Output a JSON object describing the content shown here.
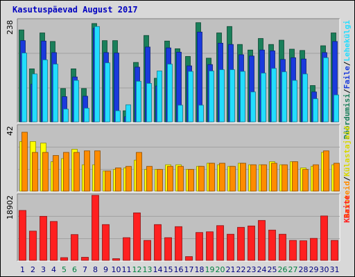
{
  "chart_data": [
    {
      "type": "bar",
      "title": "Kasutuspäevad August 2017",
      "panel": "top",
      "ymax_label": "238",
      "ylim": [
        0,
        238
      ],
      "categories": [
        "1",
        "2",
        "3",
        "4",
        "5",
        "6",
        "7",
        "8",
        "9",
        "10",
        "11",
        "12",
        "13",
        "14",
        "15",
        "16",
        "17",
        "18",
        "19",
        "20",
        "21",
        "22",
        "23",
        "24",
        "25",
        "26",
        "27",
        "28",
        "29",
        "30",
        "31"
      ],
      "series": [
        {
          "name": "Pöördumisi",
          "color": "#1a7f5a",
          "values": [
            215,
            124,
            208,
            188,
            78,
            124,
            78,
            230,
            190,
            190,
            26,
            139,
            202,
            102,
            189,
            171,
            153,
            232,
            149,
            208,
            223,
            181,
            168,
            195,
            181,
            191,
            170,
            167,
            85,
            178,
            208
          ]
        },
        {
          "name": "Faile",
          "color": "#1a3adc",
          "values": [
            190,
            88,
            189,
            162,
            59,
            105,
            60,
            219,
            162,
            161,
            12,
            128,
            175,
            84,
            173,
            163,
            131,
            210,
            134,
            184,
            181,
            157,
            154,
            168,
            166,
            146,
            150,
            147,
            70,
            162,
            188
          ]
        },
        {
          "name": "Lehekülgi",
          "color": "#22ddff",
          "values": [
            161,
            112,
            145,
            135,
            30,
            97,
            32,
            223,
            138,
            26,
            40,
            95,
            90,
            119,
            135,
            39,
            118,
            39,
            119,
            122,
            122,
            118,
            70,
            114,
            125,
            117,
            97,
            112,
            54,
            150,
            63
          ]
        }
      ]
    },
    {
      "type": "bar",
      "panel": "middle",
      "ymax_label": "42",
      "ylim": [
        0,
        42
      ],
      "categories": [
        "1",
        "2",
        "3",
        "4",
        "5",
        "6",
        "7",
        "8",
        "9",
        "10",
        "11",
        "12",
        "13",
        "14",
        "15",
        "16",
        "17",
        "18",
        "19",
        "20",
        "21",
        "22",
        "23",
        "24",
        "25",
        "26",
        "27",
        "28",
        "29",
        "30",
        "31"
      ],
      "series": [
        {
          "name": "Külastajaid",
          "color": "#ffff00",
          "values": [
            32,
            32,
            31,
            19,
            21,
            27,
            17,
            17,
            13,
            14,
            15,
            20,
            14,
            14,
            17,
            17,
            14,
            16,
            18,
            17,
            16,
            18,
            17,
            17,
            19,
            17,
            19,
            15,
            16,
            25,
            17
          ]
        },
        {
          "name": "Arvuteid",
          "color": "#ff8c00",
          "values": [
            38,
            25,
            25,
            23,
            25,
            25,
            26,
            26,
            13,
            15,
            16,
            25,
            16,
            14,
            16,
            16,
            14,
            16,
            18,
            18,
            16,
            18,
            17,
            17,
            18,
            17,
            19,
            14,
            17,
            26,
            18
          ]
        }
      ]
    },
    {
      "type": "bar",
      "panel": "bottom",
      "ymax_label": "18902",
      "ylim": [
        0,
        18902
      ],
      "categories": [
        "1",
        "2",
        "3",
        "4",
        "5",
        "6",
        "7",
        "8",
        "9",
        "10",
        "11",
        "12",
        "13",
        "14",
        "15",
        "16",
        "17",
        "18",
        "19",
        "20",
        "21",
        "22",
        "23",
        "24",
        "25",
        "26",
        "27",
        "28",
        "29",
        "30",
        "31"
      ],
      "series": [
        {
          "name": "KBaite",
          "color": "#ff2020",
          "values": [
            14500,
            8500,
            12800,
            11300,
            800,
            7500,
            900,
            18902,
            10400,
            500,
            6600,
            13800,
            5800,
            10400,
            6600,
            9800,
            1100,
            8100,
            8300,
            10100,
            7600,
            9600,
            10000,
            11600,
            8800,
            7600,
            5800,
            5700,
            6400,
            12900,
            5800
          ]
        }
      ]
    }
  ],
  "x_labels": {
    "weekend_days": [
      "5",
      "6",
      "12",
      "13",
      "19",
      "20",
      "26",
      "27"
    ],
    "weekend_color": "#008040",
    "weekday_color": "#000080"
  },
  "right_legend": {
    "top": [
      {
        "text": "Pöördumisi",
        "color": "#1a7f5a"
      },
      {
        "text": "/",
        "color": "#000000"
      },
      {
        "text": "Faile",
        "color": "#1a3adc"
      },
      {
        "text": "/",
        "color": "#000000"
      },
      {
        "text": "Lehekülgi",
        "color": "#22ddff"
      }
    ],
    "middle": [
      {
        "text": "Arvuteid",
        "color": "#ff8c00"
      },
      {
        "text": "/",
        "color": "#000000"
      },
      {
        "text": "Külastajaid",
        "color": "#d8d800"
      }
    ],
    "bottom": [
      {
        "text": "KBaite",
        "color": "#ff2020"
      }
    ]
  }
}
